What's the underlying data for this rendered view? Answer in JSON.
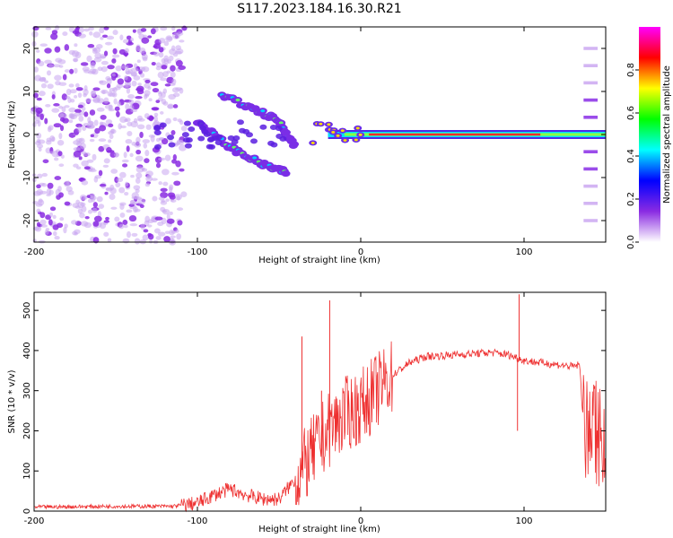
{
  "chart_data": [
    {
      "type": "heatmap",
      "title": "S117.2023.184.16.30.R21",
      "xlabel": "Height of straight line (km)",
      "ylabel": "Frequency (Hz)",
      "xlim": [
        -200,
        150
      ],
      "ylim": [
        -25,
        25
      ],
      "xticks": [
        -200,
        -100,
        0,
        100
      ],
      "yticks": [
        -20,
        -10,
        0,
        10,
        20
      ],
      "colorbar": {
        "label": "Normalized spectral amplitude",
        "range": [
          0,
          1
        ],
        "ticks": [
          "0.0",
          "0.2",
          "0.4",
          "0.6",
          "0.8"
        ],
        "colormap": [
          "#ffffff",
          "#8a2be2",
          "#0000ff",
          "#00ffff",
          "#00ff00",
          "#ffff00",
          "#ff0000",
          "#ff00ff"
        ]
      },
      "features": {
        "diffuse_scatter_region_km": [
          -200,
          -108
        ],
        "ascending_track": {
          "x": [
            -85,
            -72,
            -60,
            -50,
            -45,
            -40
          ],
          "y": [
            9,
            7,
            5,
            3,
            0,
            -3
          ]
        },
        "descending_track": {
          "x": [
            -100,
            -90,
            -80,
            -70,
            -60,
            -52,
            -45
          ],
          "y": [
            3,
            0,
            -3,
            -5,
            -7,
            -8,
            -9
          ]
        },
        "zero_doppler_line_km": [
          -20,
          150
        ],
        "zero_doppler_peak_km": [
          5,
          110
        ],
        "harmonic_stack_km": 137,
        "harmonic_freqs_hz": [
          -20,
          -16,
          -12,
          -8,
          -4,
          4,
          8,
          12,
          16,
          20
        ]
      }
    },
    {
      "type": "line",
      "xlabel": "Height of straight line (km)",
      "ylabel": "SNR (10 * v/v)",
      "xlim": [
        -200,
        150
      ],
      "ylim": [
        0,
        545
      ],
      "xticks": [
        -200,
        -100,
        0,
        100
      ],
      "yticks": [
        0,
        100,
        200,
        300,
        400,
        500
      ],
      "color": "#ee3030",
      "series": [
        {
          "x": [
            -200,
            -150,
            -115,
            -100,
            -90,
            -80,
            -70,
            -60,
            -50,
            -42,
            -38,
            -30,
            -20,
            -10,
            0,
            10,
            20,
            30,
            40,
            60,
            80,
            90,
            97,
            100,
            110,
            120,
            130,
            134,
            137,
            140,
            150
          ],
          "y": [
            10,
            12,
            12,
            20,
            40,
            55,
            40,
            30,
            30,
            70,
            90,
            140,
            200,
            240,
            260,
            300,
            340,
            370,
            385,
            390,
            395,
            390,
            380,
            375,
            370,
            365,
            360,
            365,
            180,
            170,
            170
          ]
        }
      ],
      "spikes": [
        {
          "x": -36,
          "y": 435
        },
        {
          "x": -19,
          "y": 525
        },
        {
          "x": -24,
          "y": 300
        },
        {
          "x": 97,
          "y": 540
        },
        {
          "x": 96,
          "y": 200
        }
      ]
    }
  ]
}
